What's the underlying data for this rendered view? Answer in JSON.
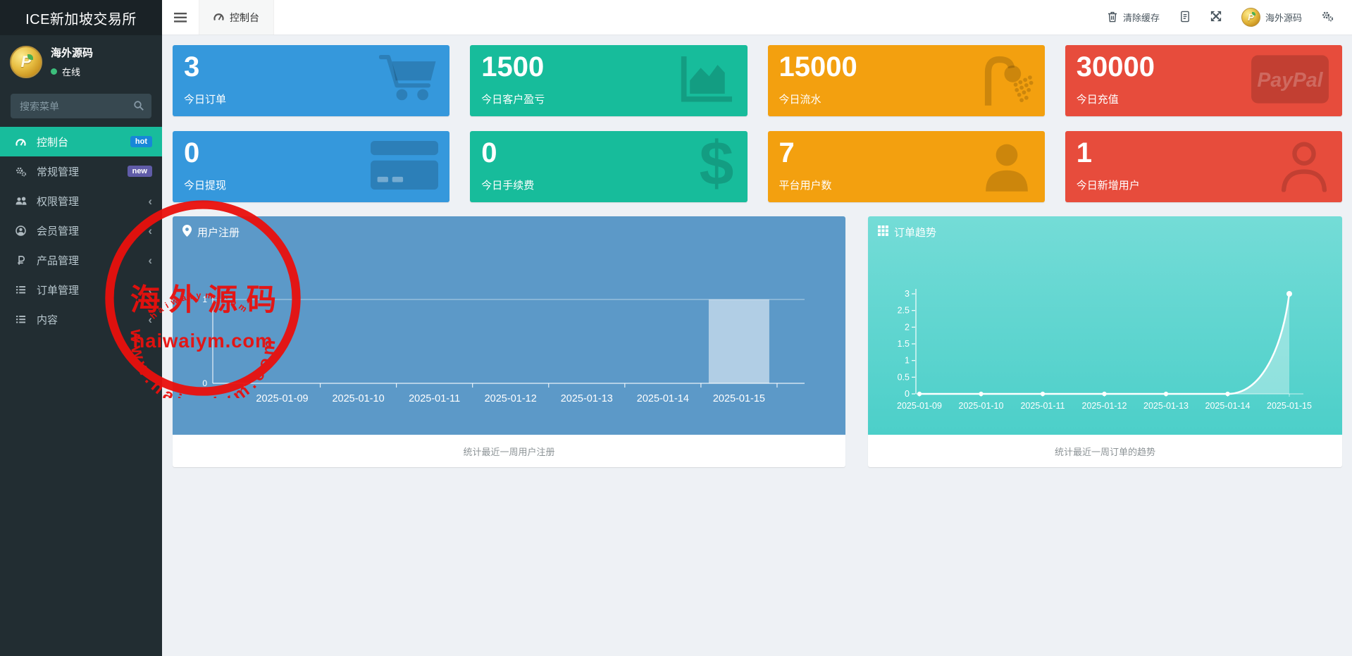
{
  "app": {
    "title": "ICE新加坡交易所"
  },
  "navbar": {
    "tab": {
      "label": "控制台"
    },
    "clear_cache_label": "清除缓存",
    "user_name": "海外源码"
  },
  "sidebar": {
    "user": {
      "name": "海外源码",
      "status": "在线"
    },
    "search_placeholder": "搜索菜单",
    "menu": [
      {
        "label": "控制台",
        "icon": "gauge-icon",
        "badge": "hot",
        "badge_color": "#1787d8",
        "active": true,
        "chevron": false
      },
      {
        "label": "常规管理",
        "icon": "cogs-icon",
        "badge": "new",
        "badge_color": "#605ca8",
        "active": false,
        "chevron": false
      },
      {
        "label": "权限管理",
        "icon": "users-icon",
        "badge": "",
        "badge_color": "",
        "active": false,
        "chevron": true
      },
      {
        "label": "会员管理",
        "icon": "user-circle-icon",
        "badge": "",
        "badge_color": "",
        "active": false,
        "chevron": true
      },
      {
        "label": "产品管理",
        "icon": "ruble-icon",
        "badge": "",
        "badge_color": "",
        "active": false,
        "chevron": true
      },
      {
        "label": "订单管理",
        "icon": "list-icon",
        "badge": "",
        "badge_color": "",
        "active": false,
        "chevron": true
      },
      {
        "label": "内容",
        "icon": "list-icon",
        "badge": "",
        "badge_color": "",
        "active": false,
        "chevron": true
      }
    ]
  },
  "cards": [
    {
      "value": "3",
      "label": "今日订单",
      "color": "#3598dc",
      "icon": "cart-icon"
    },
    {
      "value": "1500",
      "label": "今日客户盈亏",
      "color": "#17bc9b",
      "icon": "area-chart-icon"
    },
    {
      "value": "15000",
      "label": "今日流水",
      "color": "#f3a00f",
      "icon": "shower-icon"
    },
    {
      "value": "30000",
      "label": "今日充值",
      "color": "#e74c3c",
      "icon": "paypal-icon"
    },
    {
      "value": "0",
      "label": "今日提现",
      "color": "#3598dc",
      "icon": "credit-card-icon"
    },
    {
      "value": "0",
      "label": "今日手续费",
      "color": "#17bc9b",
      "icon": "dollar-icon"
    },
    {
      "value": "7",
      "label": "平台用户数",
      "color": "#f3a00f",
      "icon": "user-solid-icon"
    },
    {
      "value": "1",
      "label": "今日新增用户",
      "color": "#e74c3c",
      "icon": "user-outline-icon"
    }
  ],
  "chart_data": [
    {
      "type": "bar",
      "title": "用户注册",
      "caption": "统计最近一周用户注册",
      "categories": [
        "2025-01-09",
        "2025-01-10",
        "2025-01-11",
        "2025-01-12",
        "2025-01-13",
        "2025-01-14",
        "2025-01-15"
      ],
      "values": [
        0,
        0,
        0,
        0,
        0,
        0,
        1
      ],
      "yticks": [
        0,
        1
      ],
      "ylim": [
        0,
        1
      ],
      "grid": true,
      "bg": "#5c99c8",
      "bar_color": "rgba(255,255,255,0.52)"
    },
    {
      "type": "line",
      "title": "订单趋势",
      "caption": "统计最近一周订单的趋势",
      "categories": [
        "2025-01-09",
        "2025-01-10",
        "2025-01-11",
        "2025-01-12",
        "2025-01-13",
        "2025-01-14",
        "2025-01-15"
      ],
      "values": [
        0,
        0,
        0,
        0,
        0,
        0,
        3
      ],
      "yticks": [
        0,
        0.5,
        1,
        1.5,
        2,
        2.5,
        3
      ],
      "ylim": [
        0,
        3
      ],
      "grid": false,
      "line_color": "#ffffff",
      "area_color": "rgba(255,255,255,0.35)"
    }
  ],
  "watermark": {
    "arc_text": "www.haiwaiym.com",
    "center_text": "海外源码",
    "domain_text": "haiwaiym.com",
    "bottom_arc_text": "haiwaiym.com",
    "color": "#ea100d"
  }
}
